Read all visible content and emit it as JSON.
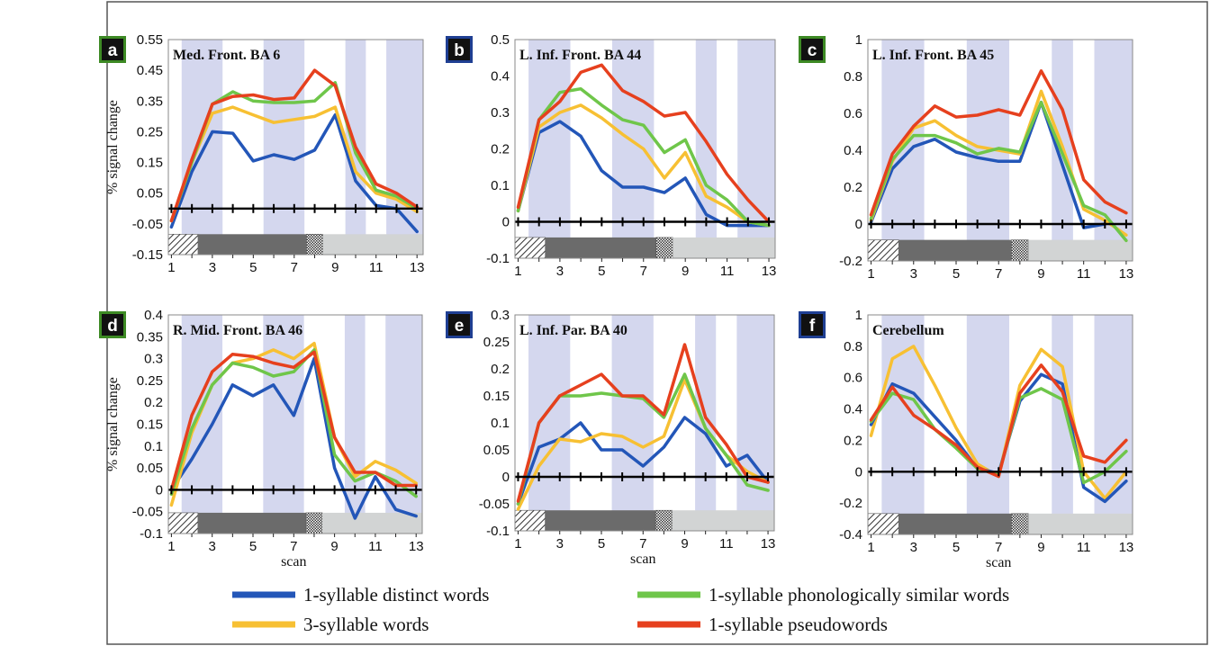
{
  "colors": {
    "distinct": "#2356b8",
    "similar": "#6fc64a",
    "three_syll": "#f7c033",
    "pseudo": "#e6401e",
    "band": "#d4d7ee",
    "badge_green": "#3d8a24",
    "badge_blue": "#1f3f93"
  },
  "legend": [
    {
      "key": "distinct",
      "label": "1-syllable distinct words"
    },
    {
      "key": "similar",
      "label": "1-syllable phonologically similar words"
    },
    {
      "key": "three_syll",
      "label": "3-syllable words"
    },
    {
      "key": "pseudo",
      "label": "1-syllable pseudowords"
    }
  ],
  "chart_data": [
    {
      "type": "line",
      "panel": "a",
      "title": "Med. Front. BA 6",
      "badge_color": "green",
      "ylabel": "% signal change",
      "xlabel": "",
      "ylim": [
        -0.15,
        0.55
      ],
      "yticks": [
        "0.55",
        "0.45",
        "0.35",
        "0.25",
        "0.15",
        "0.05",
        "-0.05",
        "-0.15"
      ],
      "ytick_values": [
        0.55,
        0.45,
        0.35,
        0.25,
        0.15,
        0.05,
        -0.05,
        -0.15
      ],
      "xlim": [
        1,
        13
      ],
      "xticks": [
        1,
        3,
        5,
        7,
        9,
        11,
        13
      ],
      "x": [
        1,
        2,
        3,
        4,
        5,
        6,
        7,
        8,
        9,
        10,
        11,
        12,
        13
      ],
      "series": [
        {
          "key": "distinct",
          "values": [
            -0.06,
            0.12,
            0.25,
            0.245,
            0.155,
            0.175,
            0.16,
            0.19,
            0.305,
            0.09,
            0.01,
            0.0,
            -0.075
          ]
        },
        {
          "key": "three_syll",
          "values": [
            -0.04,
            0.15,
            0.31,
            0.33,
            0.305,
            0.28,
            0.29,
            0.3,
            0.33,
            0.12,
            0.05,
            0.03,
            -0.01
          ]
        },
        {
          "key": "similar",
          "values": [
            -0.04,
            0.15,
            0.34,
            0.38,
            0.35,
            0.345,
            0.345,
            0.35,
            0.41,
            0.18,
            0.06,
            0.04,
            0.0
          ]
        },
        {
          "key": "pseudo",
          "values": [
            -0.04,
            0.16,
            0.34,
            0.365,
            0.37,
            0.355,
            0.36,
            0.45,
            0.4,
            0.2,
            0.08,
            0.05,
            0.005
          ]
        }
      ]
    },
    {
      "type": "line",
      "panel": "b",
      "title": "L. Inf. Front. BA 44",
      "badge_color": "blue",
      "ylabel": "",
      "xlabel": "",
      "ylim": [
        -0.1,
        0.5
      ],
      "yticks": [
        "0.5",
        "0.4",
        "0.3",
        "0.2",
        "0.1",
        "0",
        "-0.1"
      ],
      "ytick_values": [
        0.5,
        0.4,
        0.3,
        0.2,
        0.1,
        0,
        -0.1
      ],
      "xlim": [
        1,
        13
      ],
      "xticks": [
        1,
        3,
        5,
        7,
        9,
        11,
        13
      ],
      "x": [
        1,
        2,
        3,
        4,
        5,
        6,
        7,
        8,
        9,
        10,
        11,
        12,
        13
      ],
      "series": [
        {
          "key": "distinct",
          "values": [
            0.03,
            0.245,
            0.275,
            0.235,
            0.14,
            0.095,
            0.095,
            0.08,
            0.12,
            0.02,
            -0.01,
            -0.01,
            -0.01
          ]
        },
        {
          "key": "three_syll",
          "values": [
            0.03,
            0.26,
            0.3,
            0.32,
            0.285,
            0.24,
            0.2,
            0.12,
            0.19,
            0.07,
            0.04,
            0.0,
            -0.01
          ]
        },
        {
          "key": "similar",
          "values": [
            0.03,
            0.28,
            0.355,
            0.365,
            0.32,
            0.28,
            0.265,
            0.19,
            0.225,
            0.1,
            0.06,
            0.0,
            -0.01
          ]
        },
        {
          "key": "pseudo",
          "values": [
            0.04,
            0.28,
            0.33,
            0.41,
            0.43,
            0.36,
            0.33,
            0.29,
            0.3,
            0.22,
            0.13,
            0.06,
            0.0
          ]
        }
      ]
    },
    {
      "type": "line",
      "panel": "c",
      "title": "L. Inf. Front. BA 45",
      "badge_color": "green",
      "ylabel": "",
      "xlabel": "",
      "ylim": [
        -0.2,
        1.0
      ],
      "yticks": [
        "1",
        "0.8",
        "0.6",
        "0.4",
        "0.2",
        "0",
        "-0.2"
      ],
      "ytick_values": [
        1,
        0.8,
        0.6,
        0.4,
        0.2,
        0,
        -0.2
      ],
      "xlim": [
        1,
        13
      ],
      "xticks": [
        1,
        3,
        5,
        7,
        9,
        11,
        13
      ],
      "x": [
        1,
        2,
        3,
        4,
        5,
        6,
        7,
        8,
        9,
        10,
        11,
        12,
        13
      ],
      "series": [
        {
          "key": "distinct",
          "values": [
            0.01,
            0.3,
            0.42,
            0.46,
            0.39,
            0.36,
            0.34,
            0.34,
            0.66,
            0.32,
            -0.02,
            0.0,
            null
          ]
        },
        {
          "key": "three_syll",
          "values": [
            0.02,
            0.34,
            0.52,
            0.56,
            0.48,
            0.42,
            0.4,
            0.38,
            0.72,
            0.42,
            0.08,
            0.02,
            -0.06
          ]
        },
        {
          "key": "similar",
          "values": [
            0.03,
            0.35,
            0.48,
            0.48,
            0.44,
            0.38,
            0.41,
            0.39,
            0.66,
            0.38,
            0.1,
            0.05,
            -0.09
          ]
        },
        {
          "key": "pseudo",
          "values": [
            0.05,
            0.38,
            0.53,
            0.64,
            0.58,
            0.59,
            0.62,
            0.59,
            0.83,
            0.62,
            0.24,
            0.12,
            0.06
          ]
        }
      ]
    },
    {
      "type": "line",
      "panel": "d",
      "title": "R. Mid. Front. BA 46",
      "badge_color": "green",
      "ylabel": "% signal change",
      "xlabel": "scan",
      "ylim": [
        -0.1,
        0.4
      ],
      "yticks": [
        "0.4",
        "0.35",
        "0.3",
        "0.25",
        "0.2",
        "0.15",
        "0.1",
        "0.05",
        "0",
        "-0.05",
        "-0.1"
      ],
      "ytick_values": [
        0.4,
        0.35,
        0.3,
        0.25,
        0.2,
        0.15,
        0.1,
        0.05,
        0,
        -0.05,
        -0.1
      ],
      "xlim": [
        1,
        13
      ],
      "xticks": [
        1,
        3,
        5,
        7,
        9,
        11,
        13
      ],
      "x": [
        1,
        2,
        3,
        4,
        5,
        6,
        7,
        8,
        9,
        10,
        11,
        12,
        13
      ],
      "series": [
        {
          "key": "distinct",
          "values": [
            0.0,
            0.07,
            0.15,
            0.24,
            0.215,
            0.24,
            0.17,
            0.3,
            0.05,
            -0.065,
            0.03,
            -0.045,
            -0.06
          ]
        },
        {
          "key": "three_syll",
          "values": [
            -0.035,
            0.13,
            0.24,
            0.29,
            0.3,
            0.32,
            0.3,
            0.335,
            0.12,
            0.03,
            0.065,
            0.045,
            0.015
          ]
        },
        {
          "key": "similar",
          "values": [
            -0.01,
            0.14,
            0.24,
            0.29,
            0.28,
            0.26,
            0.27,
            0.32,
            0.08,
            0.02,
            0.04,
            0.02,
            -0.015
          ]
        },
        {
          "key": "pseudo",
          "values": [
            0.0,
            0.17,
            0.27,
            0.31,
            0.305,
            0.29,
            0.28,
            0.315,
            0.12,
            0.04,
            0.04,
            0.01,
            0.01
          ]
        }
      ]
    },
    {
      "type": "line",
      "panel": "e",
      "title": "L. Inf. Par. BA 40",
      "badge_color": "blue",
      "ylabel": "",
      "xlabel": "scan",
      "ylim": [
        -0.1,
        0.3
      ],
      "yticks": [
        "0.3",
        "0.25",
        "0.2",
        "0.15",
        "0.1",
        "0.05",
        "0",
        "-0.05",
        "-0.1"
      ],
      "ytick_values": [
        0.3,
        0.25,
        0.2,
        0.15,
        0.1,
        0.05,
        0,
        -0.05,
        -0.1
      ],
      "xlim": [
        1,
        13
      ],
      "xticks": [
        1,
        3,
        5,
        7,
        9,
        11,
        13
      ],
      "x": [
        1,
        2,
        3,
        4,
        5,
        6,
        7,
        8,
        9,
        10,
        11,
        12,
        13
      ],
      "series": [
        {
          "key": "distinct",
          "values": [
            -0.05,
            0.055,
            0.07,
            0.1,
            0.05,
            0.05,
            0.02,
            0.055,
            0.11,
            0.08,
            0.02,
            0.04,
            -0.01
          ]
        },
        {
          "key": "three_syll",
          "values": [
            -0.06,
            0.02,
            0.07,
            0.065,
            0.08,
            0.075,
            0.055,
            0.075,
            0.18,
            0.09,
            0.04,
            0.01,
            -0.01
          ]
        },
        {
          "key": "similar",
          "values": [
            -0.05,
            0.1,
            0.15,
            0.15,
            0.155,
            0.15,
            0.145,
            0.11,
            0.19,
            0.09,
            0.04,
            -0.015,
            -0.025
          ]
        },
        {
          "key": "pseudo",
          "values": [
            -0.045,
            0.1,
            0.15,
            0.17,
            0.19,
            0.15,
            0.15,
            0.115,
            0.245,
            0.11,
            0.06,
            0.0,
            -0.01
          ]
        }
      ]
    },
    {
      "type": "line",
      "panel": "f",
      "title": "Cerebellum",
      "badge_color": "blue",
      "ylabel": "",
      "xlabel": "scan",
      "ylim": [
        -0.4,
        1.0
      ],
      "yticks": [
        "1",
        "0.8",
        "0.6",
        "0.4",
        "0.2",
        "0",
        "-0.2",
        "-0.4"
      ],
      "ytick_values": [
        1,
        0.8,
        0.6,
        0.4,
        0.2,
        0,
        -0.2,
        -0.4
      ],
      "xlim": [
        1,
        13
      ],
      "xticks": [
        1,
        3,
        5,
        7,
        9,
        11,
        13
      ],
      "x": [
        1,
        2,
        3,
        4,
        5,
        6,
        7,
        8,
        9,
        10,
        11,
        12,
        13
      ],
      "series": [
        {
          "key": "three_syll",
          "values": [
            0.23,
            0.72,
            0.8,
            0.55,
            0.28,
            0.05,
            -0.03,
            0.55,
            0.78,
            0.67,
            0.0,
            -0.17,
            0.0
          ]
        },
        {
          "key": "distinct",
          "values": [
            0.3,
            0.56,
            0.5,
            0.35,
            0.2,
            0.02,
            -0.01,
            0.45,
            0.62,
            0.56,
            -0.1,
            -0.19,
            -0.06
          ]
        },
        {
          "key": "similar",
          "values": [
            0.32,
            0.5,
            0.46,
            0.27,
            0.15,
            0.02,
            -0.02,
            0.47,
            0.53,
            0.46,
            -0.07,
            0.0,
            0.13
          ]
        },
        {
          "key": "pseudo",
          "values": [
            0.33,
            0.54,
            0.36,
            0.27,
            0.17,
            0.03,
            -0.03,
            0.5,
            0.68,
            0.51,
            0.1,
            0.06,
            0.2
          ]
        }
      ]
    }
  ]
}
